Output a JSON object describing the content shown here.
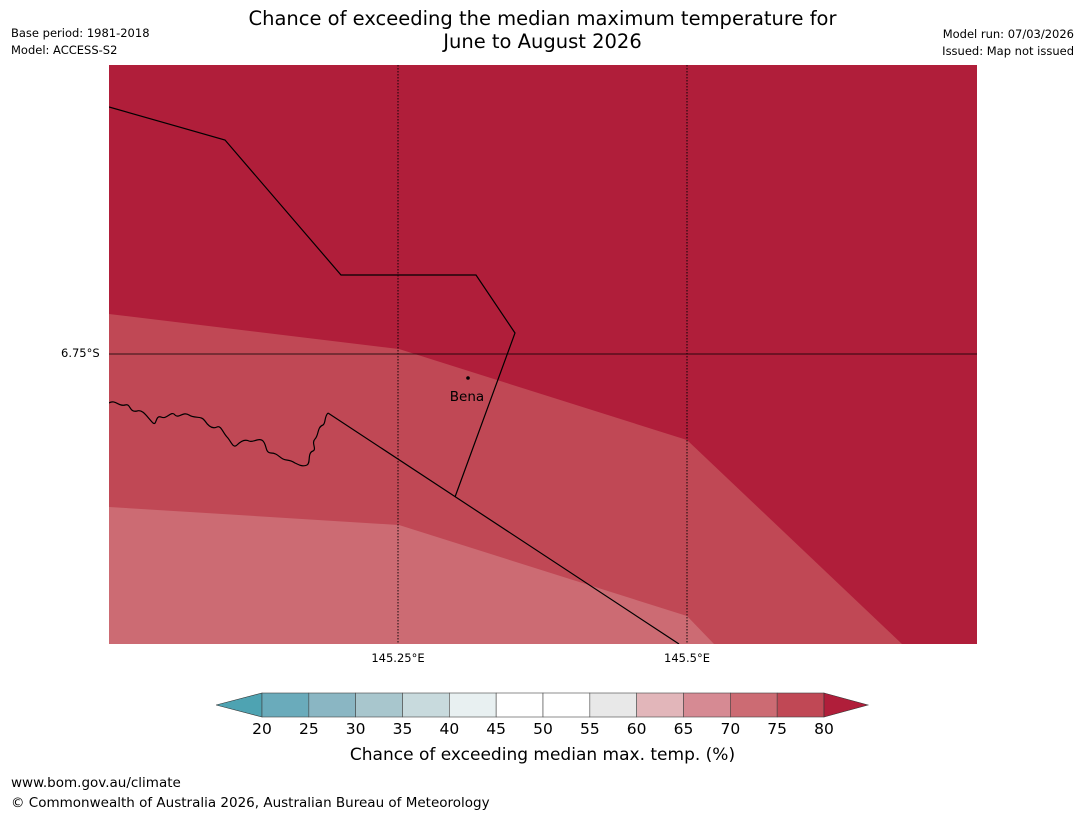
{
  "title": {
    "line1": "Chance of exceeding the median maximum temperature for",
    "line2": "June to August 2026"
  },
  "meta": {
    "base_period": "Base period: 1981-2018",
    "model": "Model: ACCESS-S2",
    "model_run": "Model run: 07/03/2026",
    "issued": "Issued: Map not issued"
  },
  "map": {
    "latitude_labels": [
      "6.75°S"
    ],
    "longitude_labels": [
      "145.25°E",
      "145.5°E"
    ],
    "place": {
      "name": "Bena"
    },
    "colors": {
      "band_80_plus": "#b01e3a",
      "band_75_80": "#c04855",
      "band_70_75": "#cc6b73",
      "boundary": "#000000",
      "gridline": "#000000"
    }
  },
  "colorbar": {
    "ticks": [
      "20",
      "25",
      "30",
      "35",
      "40",
      "45",
      "50",
      "55",
      "60",
      "65",
      "70",
      "75",
      "80"
    ],
    "below_color": "#4ea3b2",
    "above_color": "#b01e3a",
    "bins": [
      "#6aabbb",
      "#8ab6c3",
      "#a8c6cd",
      "#c8dadd",
      "#e8f0f1",
      "#ffffff",
      "#ffffff",
      "#e8e8e8",
      "#e2b6ba",
      "#d68a93",
      "#cc6b73",
      "#c04855"
    ],
    "label": "Chance of exceeding median max. temp. (%)"
  },
  "footer": {
    "website": "www.bom.gov.au/climate",
    "copyright": "© Commonwealth of Australia 2026, Australian Bureau of Meteorology"
  }
}
